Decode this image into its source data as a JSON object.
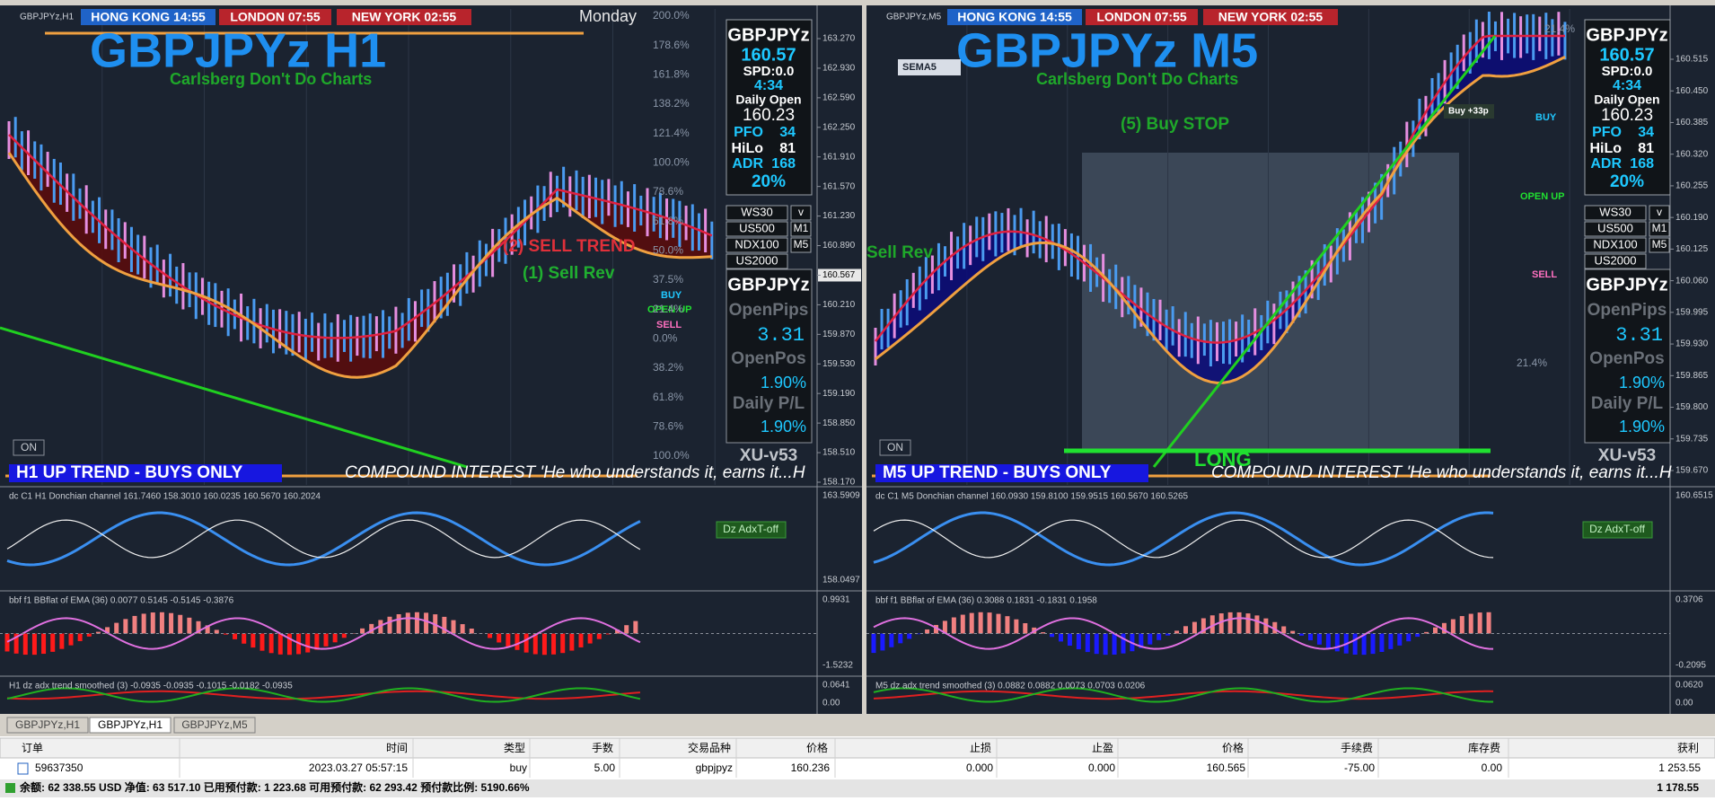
{
  "left_chart": {
    "symbol_tag": "GBPJPYz,H1",
    "clocks": [
      "HONG KONG 14:55",
      "LONDON 07:55",
      "NEW YORK 02:55"
    ],
    "day": "Monday",
    "title": "GBPJPYz H1",
    "subtitle": "Carlsberg Don't Do Charts",
    "info": {
      "symbol": "GBPJPYz",
      "price": "160.57",
      "spread": "SPD:0.0",
      "timer": "4:34",
      "daily_open_label": "Daily Open",
      "daily_open": "160.23",
      "pfo_label": "PFO",
      "pfo": "34",
      "hilo_label": "HiLo",
      "hilo": "81",
      "adr_label": "ADR",
      "adr": "168",
      "adr_pct": "20%"
    },
    "symbols": [
      "WS30",
      "US500",
      "NDX100",
      "US2000"
    ],
    "timeframes": [
      "v",
      "M1",
      "M5"
    ],
    "pl_box": {
      "symbol": "GBPJPYz",
      "open_pips_label": "OpenPips",
      "open_pips": "3.31",
      "open_pos_label": "OpenPos",
      "open_pos": "1.90%",
      "daily_pl_label": "Daily P/L",
      "daily_pl": "1.90%"
    },
    "version": "XU-v53",
    "annotations": [
      "(2) SELL TREND",
      "(1) Sell Rev",
      "BUY",
      "OPEN UP",
      "SELL"
    ],
    "fib_labels": [
      "200.0%",
      "178.6%",
      "161.8%",
      "138.2%",
      "121.4%",
      "100.0%",
      "78.6%",
      "61.8%",
      "50.0%",
      "37.5%",
      "21.4%",
      "0.0%",
      "38.2%",
      "61.8%",
      "78.6%",
      "100.0%"
    ],
    "price_axis": [
      "163.270",
      "162.930",
      "162.590",
      "162.250",
      "161.910",
      "161.570",
      "161.230",
      "160.890",
      "160.567",
      "160.210",
      "159.870",
      "159.530",
      "159.190",
      "158.850",
      "158.510",
      "158.170"
    ],
    "on_button": "ON",
    "trend": "H1 UP TREND - BUYS ONLY",
    "ticker": "COMPOUND INTEREST 'He who understands it, earns it...H",
    "indicators": [
      {
        "label": "dc C1 H1 Donchian channel 161.7460 158.3010 160.0235 160.5670 160.2024",
        "axis": [
          "163.5909",
          "158.0497"
        ],
        "button": "Dz AdxT-off"
      },
      {
        "label": "bbf f1 BBflat of EMA (36) 0.0077 0.5145 -0.5145 -0.3876",
        "axis": [
          "0.9931",
          "-1.5232"
        ]
      },
      {
        "label": "H1 dz adx trend smoothed (3) -0.0935 -0.0935 -0.1015 -0.0182 -0.0935",
        "axis": [
          "0.0641",
          "0.00"
        ]
      }
    ]
  },
  "right_chart": {
    "symbol_tag": "GBPJPYz,M5",
    "clocks": [
      "HONG KONG 14:55",
      "LONDON 07:55",
      "NEW YORK 02:55"
    ],
    "day": "",
    "title": "GBPJPYz M5",
    "subtitle": "Carlsberg Don't Do Charts",
    "info": {
      "symbol": "GBPJPYz",
      "price": "160.57",
      "spread": "SPD:0.0",
      "timer": "4:34",
      "daily_open_label": "Daily Open",
      "daily_open": "160.23",
      "pfo_label": "PFO",
      "pfo": "34",
      "hilo_label": "HiLo",
      "hilo": "81",
      "adr_label": "ADR",
      "adr": "168",
      "adr_pct": "20%"
    },
    "symbols": [
      "WS30",
      "US500",
      "NDX100",
      "US2000"
    ],
    "timeframes": [
      "v",
      "M1",
      "M5"
    ],
    "pl_box": {
      "symbol": "GBPJPYz",
      "open_pips_label": "OpenPips",
      "open_pips": "3.31",
      "open_pos_label": "OpenPos",
      "open_pos": "1.90%",
      "daily_pl_label": "Daily P/L",
      "daily_pl": "1.90%"
    },
    "version": "XU-v53",
    "annotations": [
      "(5) Buy STOP",
      "Sell Rev",
      "BUY",
      "OPEN UP",
      "SELL",
      "SEMA5",
      "LONG",
      "Buy +33p"
    ],
    "fib_labels": [
      "21.4%",
      "21.4%"
    ],
    "price_axis": [
      "160.515",
      "160.450",
      "160.385",
      "160.320",
      "160.255",
      "160.190",
      "160.125",
      "160.060",
      "159.995",
      "159.930",
      "159.865",
      "159.800",
      "159.735",
      "159.670"
    ],
    "on_button": "ON",
    "trend": "M5 UP TREND - BUYS ONLY",
    "ticker": "COMPOUND INTEREST 'He who understands it, earns it...H",
    "indicators": [
      {
        "label": "dc C1 M5 Donchian channel 160.0930 159.8100 159.9515 160.5670 160.5265",
        "axis": [
          "160.6515"
        ],
        "button": "Dz AdxT-off"
      },
      {
        "label": "bbf f1 BBflat of EMA (36) 0.3088 0.1831 -0.1831 0.1958",
        "axis": [
          "0.3706",
          "-0.2095"
        ]
      },
      {
        "label": "M5 dz adx trend smoothed (3) 0.0882 0.0882 0.0073 0.0703 0.0206",
        "axis": [
          "0.0620",
          "0.00"
        ]
      }
    ]
  },
  "tabs": [
    "GBPJPYz,H1",
    "GBPJPYz,H1",
    "GBPJPYz,M5"
  ],
  "table": {
    "headers": [
      "订单",
      "时间",
      "类型",
      "手数",
      "交易品种",
      "价格",
      "止损",
      "止盈",
      "价格",
      "手续费",
      "库存费",
      "获利"
    ],
    "rows": [
      [
        "59637350",
        "2023.03.27 05:57:15",
        "buy",
        "5.00",
        "gbpjpyz",
        "160.236",
        "0.000",
        "0.000",
        "160.565",
        "-75.00",
        "0.00",
        "1 253.55"
      ]
    ],
    "balance": "余额: 62 338.55 USD  净值: 63 517.10  已用预付款: 1 223.68  可用预付款: 62 293.42  预付款比例: 5190.66%",
    "total": "1 178.55"
  }
}
